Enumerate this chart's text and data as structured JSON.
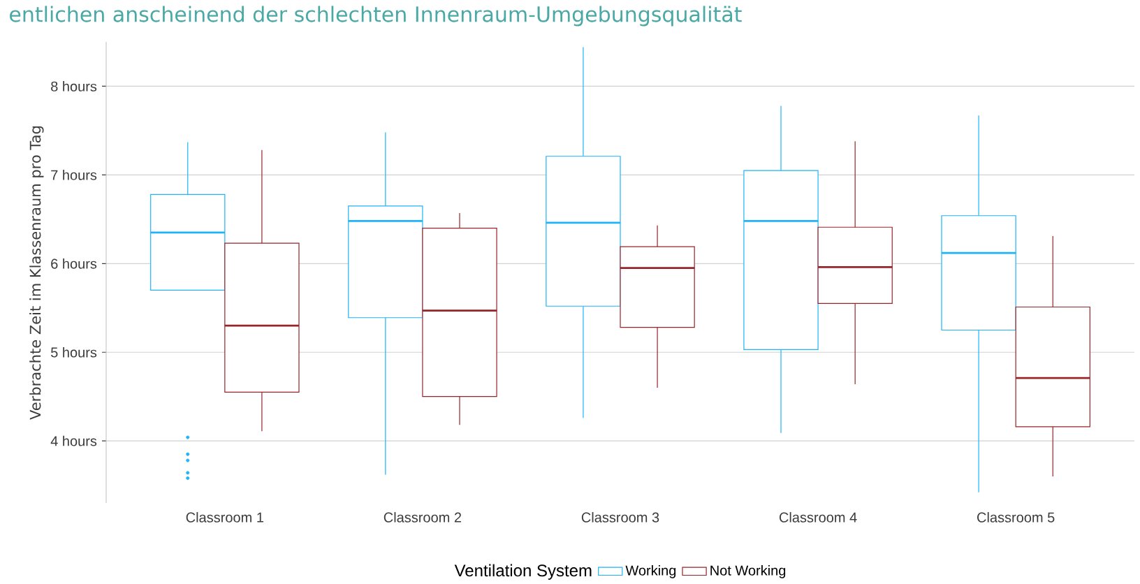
{
  "chart_data": {
    "type": "box",
    "title": "entlichen anscheinend der schlechten Innenraum-Umgebungsqualität",
    "ylabel": "Verbrachte Zeit im Klassenraum pro Tag",
    "legend_title": "Ventilation System",
    "legend": "bottom",
    "grid": "y",
    "categories": [
      "Classroom 1",
      "Classroom 2",
      "Classroom 3",
      "Classroom 4",
      "Classroom 5"
    ],
    "ylim": [
      3.3,
      8.5
    ],
    "yticks": [
      {
        "value": 4,
        "label": "4 hours"
      },
      {
        "value": 5,
        "label": "5 hours"
      },
      {
        "value": 6,
        "label": "6 hours"
      },
      {
        "value": 7,
        "label": "7 hours"
      },
      {
        "value": 8,
        "label": "8 hours"
      }
    ],
    "series": [
      {
        "name": "Working",
        "color": "#1fb4f7",
        "boxes": [
          {
            "low": 5.7,
            "q1": 5.7,
            "median": 6.35,
            "q3": 6.78,
            "high": 7.37,
            "outliers": [
              4.04,
              3.85,
              3.78,
              3.64,
              3.58
            ]
          },
          {
            "low": 3.62,
            "q1": 5.39,
            "median": 6.48,
            "q3": 6.65,
            "high": 7.48
          },
          {
            "low": 4.26,
            "q1": 5.52,
            "median": 6.46,
            "q3": 7.21,
            "high": 8.44
          },
          {
            "low": 4.09,
            "q1": 5.03,
            "median": 6.48,
            "q3": 7.05,
            "high": 7.78
          },
          {
            "low": 3.42,
            "q1": 5.25,
            "median": 6.12,
            "q3": 6.54,
            "high": 7.67
          }
        ]
      },
      {
        "name": "Not Working",
        "color": "#962428",
        "boxes": [
          {
            "low": 4.11,
            "q1": 4.55,
            "median": 5.3,
            "q3": 6.23,
            "high": 7.28
          },
          {
            "low": 4.18,
            "q1": 4.5,
            "median": 5.47,
            "q3": 6.4,
            "high": 6.57
          },
          {
            "low": 4.6,
            "q1": 5.28,
            "median": 5.95,
            "q3": 6.19,
            "high": 6.43
          },
          {
            "low": 4.64,
            "q1": 5.55,
            "median": 5.96,
            "q3": 6.41,
            "high": 7.38
          },
          {
            "low": 3.6,
            "q1": 4.16,
            "median": 4.71,
            "q3": 5.51,
            "high": 6.31
          }
        ]
      }
    ]
  }
}
